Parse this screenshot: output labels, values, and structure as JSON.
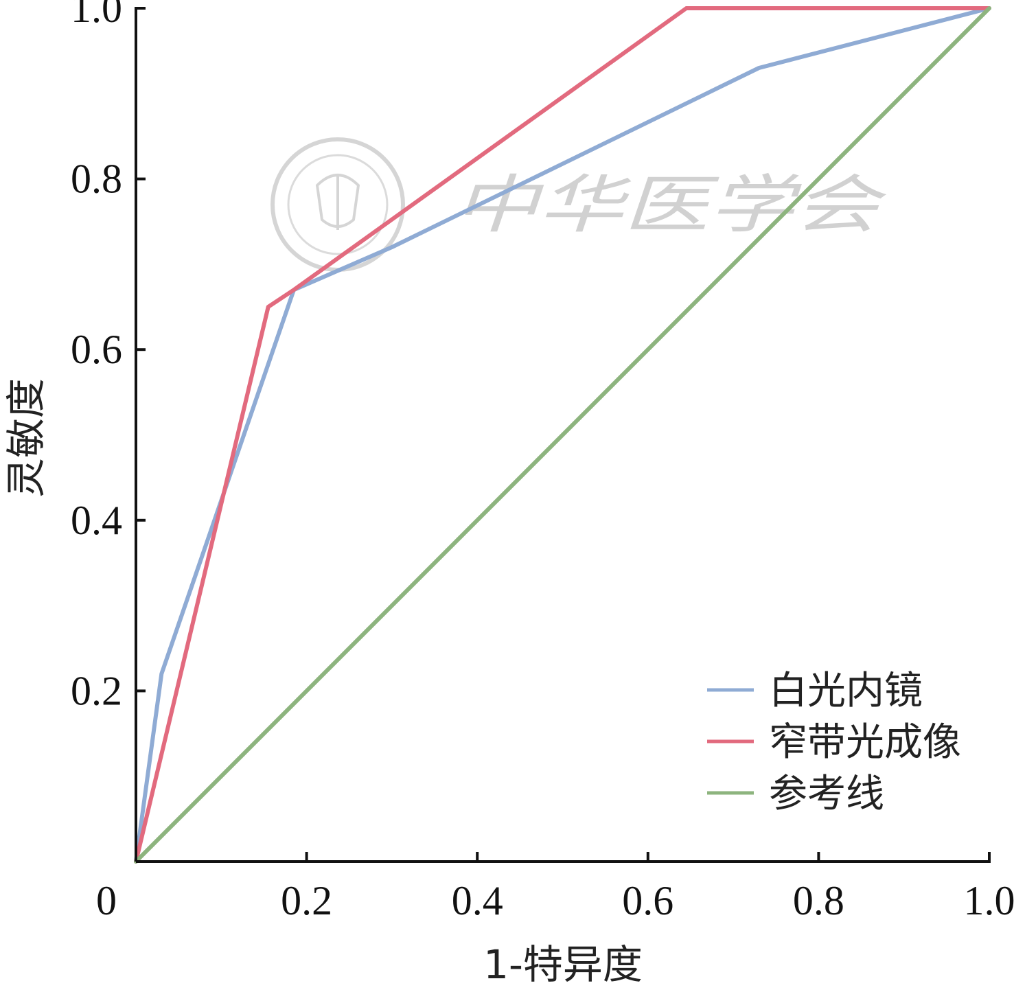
{
  "chart_data": {
    "type": "line",
    "title": "",
    "xlabel": "1-特异度",
    "ylabel": "灵敏度",
    "xlim": [
      0,
      1.0
    ],
    "ylim": [
      0,
      1.0
    ],
    "x_ticks": [
      "0",
      "0.2",
      "0.4",
      "0.6",
      "0.8",
      "1.0"
    ],
    "y_ticks": [
      "0.2",
      "0.4",
      "0.6",
      "0.8",
      "1.0"
    ],
    "grid": false,
    "legend_position": "bottom-right",
    "series": [
      {
        "name": "白光内镜",
        "color": "#8fabd4",
        "points": [
          [
            0,
            0
          ],
          [
            0.03,
            0.22
          ],
          [
            0.185,
            0.67
          ],
          [
            0.3,
            0.72
          ],
          [
            0.73,
            0.93
          ],
          [
            1.0,
            1.0
          ]
        ]
      },
      {
        "name": "窄带光成像",
        "color": "#e26a7e",
        "points": [
          [
            0,
            0
          ],
          [
            0.155,
            0.65
          ],
          [
            0.185,
            0.67
          ],
          [
            0.645,
            1.0
          ],
          [
            1.0,
            1.0
          ]
        ]
      },
      {
        "name": "参考线",
        "color": "#8db47e",
        "points": [
          [
            0,
            0
          ],
          [
            1.0,
            1.0
          ]
        ]
      }
    ]
  },
  "watermark": {
    "text": "中华医学会",
    "seal_icon": "society-seal-icon"
  }
}
